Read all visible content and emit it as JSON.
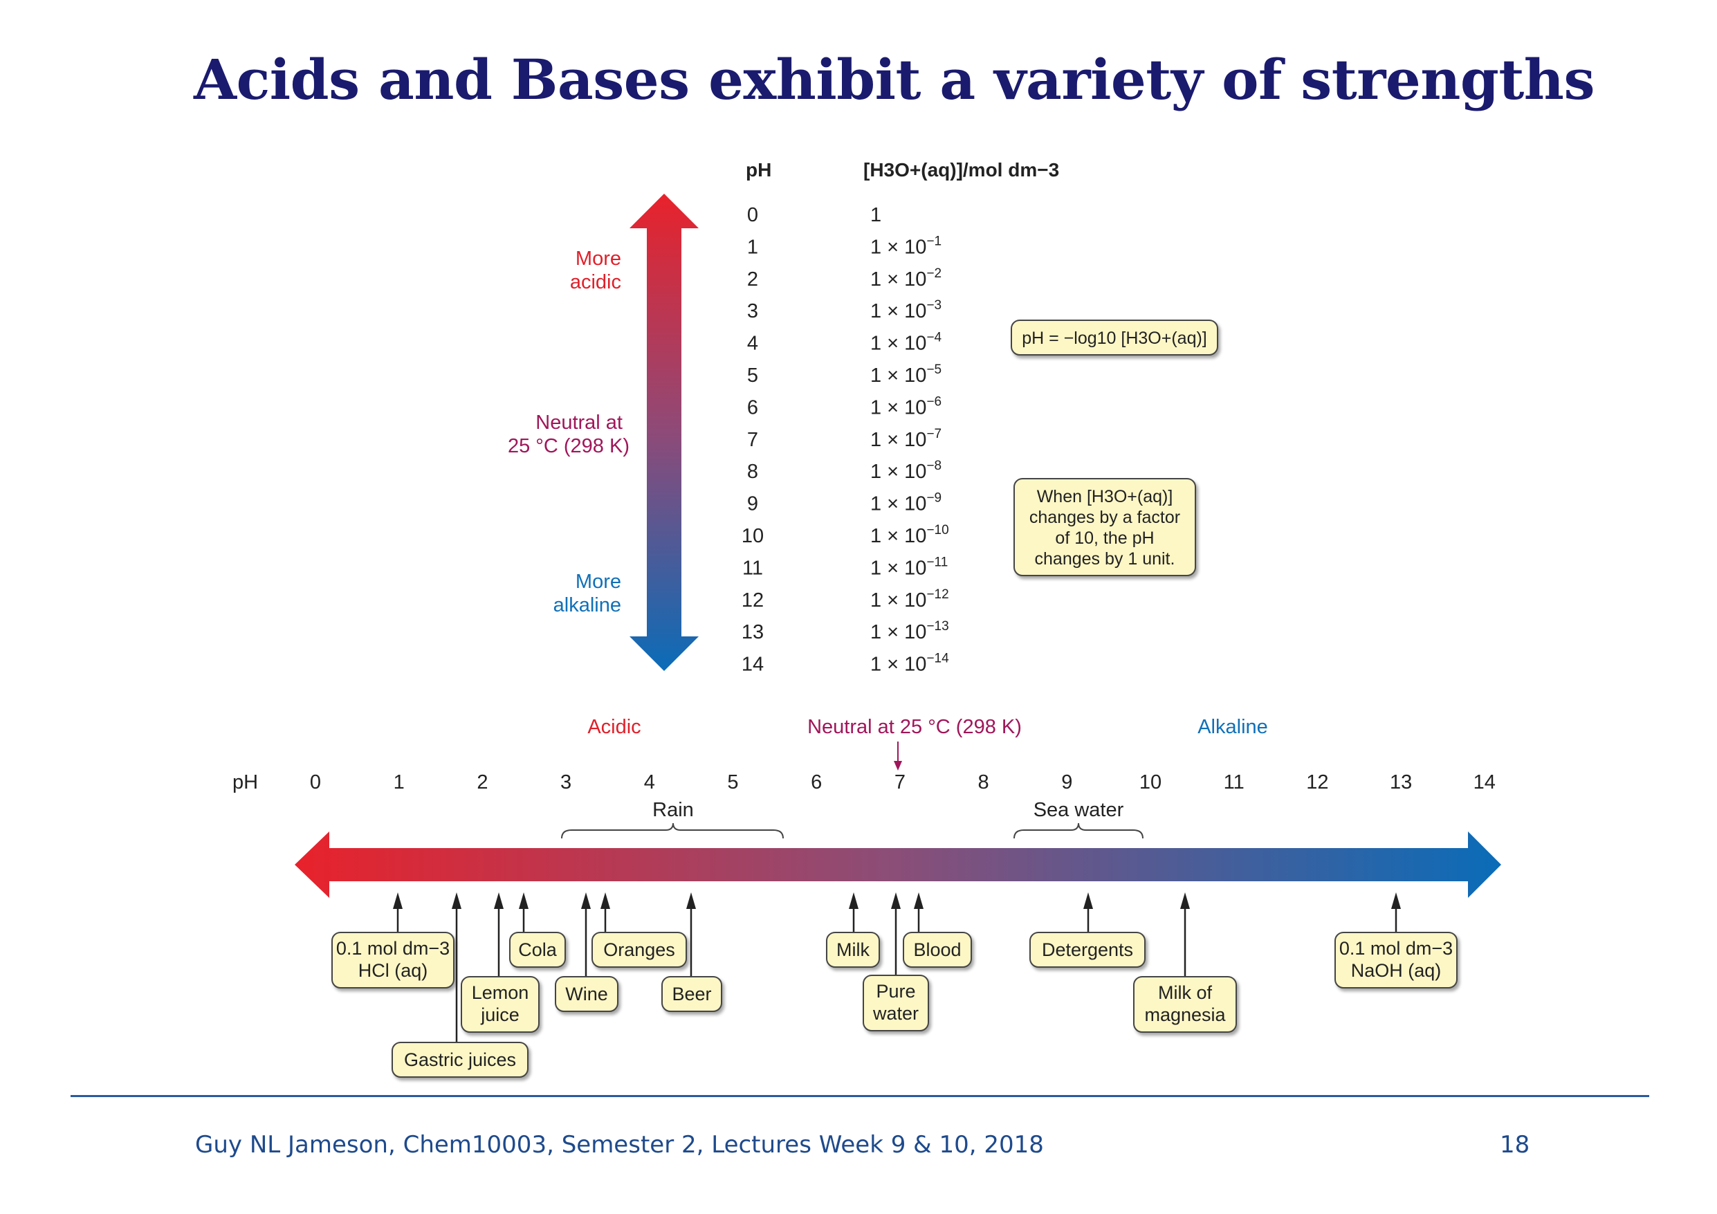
{
  "slide": {
    "title": "Acids and Bases exhibit a variety of strengths",
    "footer": "Guy NL Jameson, Chem10003, Semester 2, Lectures Week 9 & 10, 2018",
    "page_number": "18"
  },
  "colors": {
    "title": "#1a1a6e",
    "acid_red": "#e0202a",
    "neutral_magenta": "#a0165a",
    "alkaline_blue": "#1070b8",
    "label_box": "#fdf7c6",
    "footer": "#1e4a8c"
  },
  "vertical_scale": {
    "ph_header": "pH",
    "conc_header": "[H3O+(aq)]/mol dm−3",
    "rows": [
      {
        "ph": "0",
        "base": "1",
        "exp": ""
      },
      {
        "ph": "1",
        "base": "1 × 10",
        "exp": "−1"
      },
      {
        "ph": "2",
        "base": "1 × 10",
        "exp": "−2"
      },
      {
        "ph": "3",
        "base": "1 × 10",
        "exp": "−3"
      },
      {
        "ph": "4",
        "base": "1 × 10",
        "exp": "−4"
      },
      {
        "ph": "5",
        "base": "1 × 10",
        "exp": "−5"
      },
      {
        "ph": "6",
        "base": "1 × 10",
        "exp": "−6"
      },
      {
        "ph": "7",
        "base": "1 × 10",
        "exp": "−7"
      },
      {
        "ph": "8",
        "base": "1 × 10",
        "exp": "−8"
      },
      {
        "ph": "9",
        "base": "1 × 10",
        "exp": "−9"
      },
      {
        "ph": "10",
        "base": "1 × 10",
        "exp": "−10"
      },
      {
        "ph": "11",
        "base": "1 × 10",
        "exp": "−11"
      },
      {
        "ph": "12",
        "base": "1 × 10",
        "exp": "−12"
      },
      {
        "ph": "13",
        "base": "1 × 10",
        "exp": "−13"
      },
      {
        "ph": "14",
        "base": "1 × 10",
        "exp": "−14"
      }
    ],
    "more_acidic": [
      "More",
      "acidic"
    ],
    "neutral": [
      "Neutral at",
      "25 °C (298 K)"
    ],
    "more_alkaline": [
      "More",
      "alkaline"
    ],
    "formula_box": "pH = −log10 [H3O+(aq)]",
    "note_box": [
      "When [H3O+(aq)]",
      "changes by a factor",
      "of 10, the pH",
      "changes by 1 unit."
    ]
  },
  "horizontal_scale": {
    "acidic_label": "Acidic",
    "neutral_label": "Neutral at 25 °C (298 K)",
    "alkaline_label": "Alkaline",
    "ph_label": "pH",
    "ticks": [
      "0",
      "1",
      "2",
      "3",
      "4",
      "5",
      "6",
      "7",
      "8",
      "9",
      "10",
      "11",
      "12",
      "13",
      "14"
    ],
    "rain_label": "Rain",
    "sea_water_label": "Sea water",
    "substances": [
      {
        "name": "0.1 mol dm−3 HCl (aq)",
        "lines": [
          "0.1 mol dm−3",
          "HCl (aq)"
        ]
      },
      {
        "name": "Gastric juices",
        "lines": [
          "Gastric juices"
        ]
      },
      {
        "name": "Lemon juice",
        "lines": [
          "Lemon",
          "juice"
        ]
      },
      {
        "name": "Cola",
        "lines": [
          "Cola"
        ]
      },
      {
        "name": "Wine",
        "lines": [
          "Wine"
        ]
      },
      {
        "name": "Oranges",
        "lines": [
          "Oranges"
        ]
      },
      {
        "name": "Beer",
        "lines": [
          "Beer"
        ]
      },
      {
        "name": "Milk",
        "lines": [
          "Milk"
        ]
      },
      {
        "name": "Pure water",
        "lines": [
          "Pure",
          "water"
        ]
      },
      {
        "name": "Blood",
        "lines": [
          "Blood"
        ]
      },
      {
        "name": "Detergents",
        "lines": [
          "Detergents"
        ]
      },
      {
        "name": "Milk of magnesia",
        "lines": [
          "Milk of",
          "magnesia"
        ]
      },
      {
        "name": "0.1 mol dm−3 NaOH (aq)",
        "lines": [
          "0.1 mol dm−3",
          "NaOH (aq)"
        ]
      }
    ]
  }
}
